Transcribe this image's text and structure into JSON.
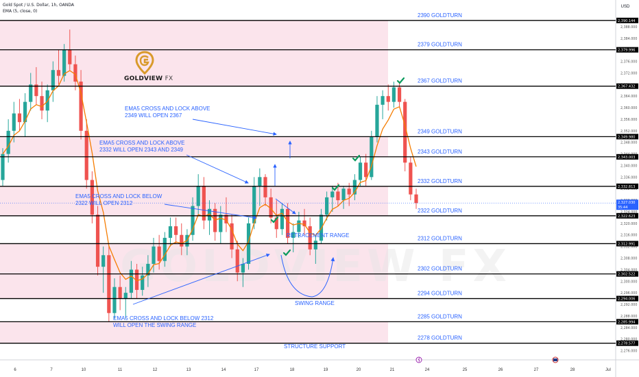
{
  "header": {
    "symbol": "Gold Spot / U.S. Dollar, 1h, OANDA",
    "indicator": "EMA (5, close, 0)"
  },
  "logo": {
    "word": "GOLDVIEW",
    "suffix": "FX",
    "watermark": "GOLDVIEW FX"
  },
  "colors": {
    "zone": "#fbe4ec",
    "up": "#26a69a",
    "down": "#ef5350",
    "ema": "#f57c00",
    "level_line": "#000000",
    "annotation": "#2962ff",
    "current_price_tag": "#2962ff",
    "check": "#0a9a5c",
    "logo_gold": "#d99a2b"
  },
  "chart_data": {
    "type": "candlestick",
    "title": "Gold Spot / U.S. Dollar, 1h, OANDA",
    "currency": "USD",
    "ylim": [
      2274,
      2392
    ],
    "x_ticks": [
      "6",
      "7",
      "10",
      "11",
      "12",
      "13",
      "14",
      "17",
      "18",
      "19",
      "20",
      "21",
      "24",
      "25",
      "26",
      "27",
      "28",
      "Jul"
    ],
    "y_ticks": [
      "2,276.000",
      "2,280.000",
      "2,284.000",
      "2,288.000",
      "2,292.000",
      "2,296.000",
      "2,300.000",
      "2,304.000",
      "2,308.000",
      "2,312.000",
      "2,316.000",
      "2,320.000",
      "2,324.000",
      "2,328.000",
      "2,332.000",
      "2,336.000",
      "2,340.000",
      "2,344.000",
      "2,348.000",
      "2,352.000",
      "2,356.000",
      "2,360.000",
      "2,364.000",
      "2,368.000",
      "2,372.000",
      "2,376.000",
      "2,380.000",
      "2,384.000",
      "2,388.000"
    ],
    "levels": [
      {
        "label": "2390 GOLDTURN",
        "tag": "2,390.144",
        "value": 2390.144
      },
      {
        "label": "2379 GOLDTURN",
        "tag": "2,379.996",
        "value": 2379.996
      },
      {
        "label": "2367 GOLDTURN",
        "tag": "2,367.432",
        "value": 2367.432
      },
      {
        "label": "2349 GOLDTURN",
        "tag": "2,349.980",
        "value": 2349.98
      },
      {
        "label": "2343 GOLDTURN",
        "tag": "2,343.003",
        "value": 2343.003
      },
      {
        "label": "2332 GOLDTURN",
        "tag": "2,332.813",
        "value": 2332.813
      },
      {
        "label": "2322 GOLDTURN",
        "tag": "2,322.623",
        "value": 2322.623
      },
      {
        "label": "2312 GOLDTURN",
        "tag": "2,312.991",
        "value": 2312.991
      },
      {
        "label": "2302 GOLDTURN",
        "tag": "2,302.522",
        "value": 2302.522
      },
      {
        "label": "2294 GOLDTURN",
        "tag": "2,294.006",
        "value": 2294.006
      },
      {
        "label": "2285 GOLDTURN",
        "tag": "2,285.994",
        "value": 2285.994
      },
      {
        "label": "2278 GOLDTURN",
        "tag": "2,278.577",
        "value": 2278.577
      }
    ],
    "zones": [
      [
        2367.432,
        2390.144
      ],
      [
        2343.003,
        2349.98
      ],
      [
        2322.623,
        2332.813
      ],
      [
        2294.006,
        2312.991
      ],
      [
        2278.577,
        2285.994
      ]
    ],
    "current_price": {
      "value": 2327.03,
      "tag": "2,327.030",
      "countdown": "35:44"
    },
    "ohlc": [
      [
        2335,
        2346,
        2333,
        2344
      ],
      [
        2344,
        2356,
        2341,
        2352
      ],
      [
        2352,
        2362,
        2348,
        2358
      ],
      [
        2358,
        2363,
        2352,
        2355
      ],
      [
        2355,
        2365,
        2350,
        2362
      ],
      [
        2362,
        2372,
        2359,
        2368
      ],
      [
        2368,
        2374,
        2361,
        2364
      ],
      [
        2364,
        2369,
        2356,
        2359
      ],
      [
        2359,
        2368,
        2355,
        2366
      ],
      [
        2366,
        2376,
        2362,
        2373
      ],
      [
        2373,
        2380,
        2368,
        2371
      ],
      [
        2371,
        2382,
        2369,
        2380
      ],
      [
        2380,
        2387,
        2373,
        2375
      ],
      [
        2375,
        2378,
        2366,
        2369
      ],
      [
        2369,
        2373,
        2349,
        2352
      ],
      [
        2352,
        2356,
        2332,
        2335
      ],
      [
        2335,
        2338,
        2320,
        2323
      ],
      [
        2323,
        2326,
        2302,
        2305
      ],
      [
        2305,
        2312,
        2296,
        2309
      ],
      [
        2309,
        2312,
        2286,
        2289
      ],
      [
        2289,
        2301,
        2287,
        2298
      ],
      [
        2298,
        2302,
        2290,
        2294
      ],
      [
        2294,
        2298,
        2287,
        2296
      ],
      [
        2296,
        2307,
        2294,
        2304
      ],
      [
        2304,
        2306,
        2294,
        2297
      ],
      [
        2297,
        2305,
        2295,
        2302
      ],
      [
        2302,
        2309,
        2298,
        2306
      ],
      [
        2306,
        2315,
        2303,
        2312
      ],
      [
        2312,
        2316,
        2304,
        2307
      ],
      [
        2307,
        2317,
        2305,
        2315
      ],
      [
        2315,
        2322,
        2312,
        2319
      ],
      [
        2319,
        2322,
        2313,
        2316
      ],
      [
        2316,
        2320,
        2309,
        2312
      ],
      [
        2312,
        2318,
        2309,
        2316
      ],
      [
        2316,
        2329,
        2314,
        2326
      ],
      [
        2326,
        2337,
        2323,
        2333
      ],
      [
        2333,
        2336,
        2318,
        2321
      ],
      [
        2321,
        2328,
        2316,
        2325
      ],
      [
        2325,
        2327,
        2314,
        2317
      ],
      [
        2317,
        2326,
        2313,
        2323
      ],
      [
        2323,
        2329,
        2317,
        2320
      ],
      [
        2320,
        2323,
        2308,
        2311
      ],
      [
        2311,
        2314,
        2300,
        2303
      ],
      [
        2303,
        2308,
        2298,
        2306
      ],
      [
        2306,
        2322,
        2304,
        2320
      ],
      [
        2320,
        2336,
        2318,
        2333
      ],
      [
        2333,
        2339,
        2326,
        2336
      ],
      [
        2336,
        2337,
        2326,
        2329
      ],
      [
        2329,
        2332,
        2320,
        2322
      ],
      [
        2322,
        2328,
        2315,
        2318
      ],
      [
        2318,
        2327,
        2316,
        2325
      ],
      [
        2325,
        2327,
        2313,
        2315
      ],
      [
        2315,
        2320,
        2310,
        2317
      ],
      [
        2317,
        2324,
        2315,
        2321
      ],
      [
        2321,
        2325,
        2316,
        2319
      ],
      [
        2319,
        2322,
        2309,
        2311
      ],
      [
        2311,
        2316,
        2306,
        2314
      ],
      [
        2314,
        2325,
        2313,
        2323
      ],
      [
        2323,
        2331,
        2321,
        2329
      ],
      [
        2329,
        2333,
        2324,
        2331
      ],
      [
        2331,
        2334,
        2326,
        2328
      ],
      [
        2328,
        2333,
        2325,
        2332
      ],
      [
        2332,
        2334,
        2326,
        2330
      ],
      [
        2330,
        2337,
        2328,
        2335
      ],
      [
        2335,
        2343,
        2333,
        2341
      ],
      [
        2341,
        2344,
        2333,
        2336
      ],
      [
        2336,
        2352,
        2335,
        2350
      ],
      [
        2350,
        2364,
        2348,
        2361
      ],
      [
        2361,
        2366,
        2356,
        2364
      ],
      [
        2364,
        2368,
        2359,
        2362
      ],
      [
        2362,
        2369,
        2360,
        2367
      ],
      [
        2367,
        2369,
        2360,
        2362
      ],
      [
        2362,
        2363,
        2338,
        2341
      ],
      [
        2341,
        2343,
        2328,
        2330
      ],
      [
        2330,
        2332,
        2325,
        2327
      ]
    ]
  },
  "annotations": {
    "a1": [
      "EMA5 CROSS AND LOCK ABOVE",
      "2349 WILL OPEN 2367"
    ],
    "a2": [
      "EMA5 CROSS AND LOCK ABOVE",
      "2332 WILL OPEN 2343 AND 2349"
    ],
    "a3": [
      "EMA5 CROSS AND LOCK BELOW",
      "2322 WILL OPEN 2312"
    ],
    "a4": [
      "EMA5 CROSS AND LOCK BELOW 2312",
      "WILL OPEN THE SWING RANGE"
    ],
    "retracement": "RETRACEMENT RANGE",
    "swing": "SWING RANGE",
    "structure": "STRUCTURE SUPPORT"
  }
}
